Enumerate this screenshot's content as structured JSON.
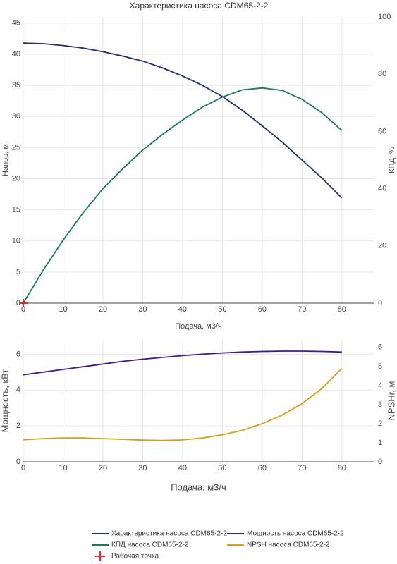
{
  "chart_data": [
    {
      "type": "line",
      "title": "Характеристика насоса CDM65-2-2",
      "x_label": "Подача, м3/ч",
      "y_label": "Напор, м",
      "y2_label": "КПД, %",
      "x": [
        0,
        5,
        10,
        15,
        20,
        25,
        30,
        35,
        40,
        45,
        50,
        55,
        60,
        65,
        70,
        75,
        80
      ],
      "series": [
        {
          "name": "Характеристика насоса CDM65-2-2",
          "color": "#1f2f6e",
          "values": [
            41.8,
            41.7,
            41.4,
            41.0,
            40.4,
            39.7,
            38.9,
            37.8,
            36.5,
            35.0,
            33.2,
            31.0,
            28.5,
            25.9,
            23.0,
            20.1,
            16.9
          ]
        },
        {
          "name": "КПД насоса CDM65-2-2",
          "color": "#1a7a5a",
          "axis": "y2",
          "values": [
            0,
            11.5,
            22,
            31.5,
            40,
            47,
            53.5,
            59,
            64,
            68.5,
            72,
            74.5,
            75.2,
            74.3,
            71.2,
            66.5,
            60.3
          ]
        },
        {
          "name": "Рабочая точка",
          "color": "#e8262b",
          "type": "scatter",
          "marker": "cross",
          "x": [
            0
          ],
          "values": [
            0
          ]
        }
      ],
      "xlim": [
        0,
        88
      ],
      "xticks": [
        0,
        10,
        20,
        30,
        40,
        50,
        60,
        70,
        80
      ],
      "ylim": [
        0,
        46
      ],
      "yticks": [
        0,
        5,
        10,
        15,
        20,
        25,
        30,
        35,
        40,
        45
      ],
      "y2lim": [
        0,
        100
      ],
      "y2ticks": [
        0,
        20,
        40,
        60,
        80,
        100
      ],
      "grid": true
    },
    {
      "type": "line",
      "x_label": "Подача, м3/ч",
      "y_label": "Мощность, кВт",
      "y2_label": "NPSHr, м",
      "x": [
        0,
        5,
        10,
        15,
        20,
        25,
        30,
        35,
        40,
        45,
        50,
        55,
        60,
        65,
        70,
        75,
        80
      ],
      "series": [
        {
          "name": "Мощность насоса CDM65-2-2",
          "color": "#3d1a8e",
          "values": [
            4.85,
            5.0,
            5.15,
            5.3,
            5.45,
            5.6,
            5.72,
            5.82,
            5.92,
            6.0,
            6.07,
            6.12,
            6.15,
            6.17,
            6.17,
            6.15,
            6.12
          ]
        },
        {
          "name": "NPSH насоса CDM65-2-2",
          "color": "#d4a017",
          "axis": "y2",
          "values": [
            1.15,
            1.22,
            1.25,
            1.25,
            1.22,
            1.18,
            1.14,
            1.12,
            1.15,
            1.25,
            1.42,
            1.65,
            2.0,
            2.45,
            3.05,
            3.85,
            4.9
          ]
        }
      ],
      "xlim": [
        0,
        88
      ],
      "xticks": [
        0,
        10,
        20,
        30,
        40,
        50,
        60,
        70,
        80
      ],
      "ylim": [
        0,
        6.8
      ],
      "yticks": [
        0,
        2,
        4,
        6
      ],
      "y2lim": [
        0,
        6.4
      ],
      "y2ticks": [
        0,
        1,
        2,
        3,
        4,
        5,
        6
      ],
      "grid": true
    }
  ]
}
